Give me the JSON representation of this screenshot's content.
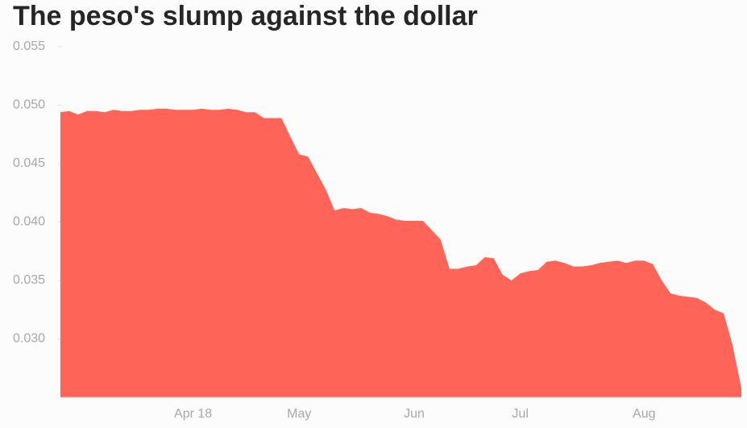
{
  "chart_data": {
    "type": "area",
    "title": "The peso's slump against the dollar",
    "categories": [
      null,
      null,
      null,
      null,
      null,
      null,
      null,
      null,
      null,
      null,
      null,
      null,
      null,
      null,
      null,
      "Apr 18",
      null,
      null,
      null,
      null,
      null,
      null,
      null,
      null,
      null,
      null,
      null,
      "May",
      null,
      null,
      null,
      null,
      null,
      null,
      null,
      null,
      null,
      null,
      null,
      null,
      "Jun",
      null,
      null,
      null,
      null,
      null,
      null,
      null,
      null,
      null,
      null,
      null,
      "Jul",
      null,
      null,
      null,
      null,
      null,
      null,
      null,
      null,
      null,
      null,
      null,
      null,
      null,
      "Aug",
      null,
      null,
      null,
      null,
      null,
      null,
      null,
      null,
      null,
      null,
      null
    ],
    "values": [
      0.0494,
      0.0495,
      0.0492,
      0.0495,
      0.0495,
      0.0494,
      0.0496,
      0.0495,
      0.0495,
      0.0496,
      0.0496,
      0.0497,
      0.0497,
      0.0496,
      0.0496,
      0.0496,
      0.0497,
      0.0496,
      0.0496,
      0.0497,
      0.0496,
      0.0494,
      0.0494,
      0.0489,
      0.0489,
      0.0489,
      0.0473,
      0.0458,
      0.0456,
      0.0442,
      0.0428,
      0.041,
      0.0412,
      0.0411,
      0.0412,
      0.0408,
      0.0407,
      0.0405,
      0.0402,
      0.0401,
      0.0401,
      0.0401,
      0.0393,
      0.0385,
      0.036,
      0.036,
      0.0362,
      0.0363,
      0.037,
      0.0369,
      0.0355,
      0.035,
      0.0356,
      0.0358,
      0.0359,
      0.0366,
      0.0367,
      0.0365,
      0.0362,
      0.0362,
      0.0363,
      0.0365,
      0.0366,
      0.0367,
      0.0365,
      0.0367,
      0.0367,
      0.0364,
      0.035,
      0.0339,
      0.0337,
      0.0336,
      0.0335,
      0.0331,
      0.0325,
      0.0322,
      0.0295,
      0.0258
    ],
    "color": "#ff6459",
    "ylim": [
      0.025,
      0.055
    ],
    "yticks": [
      {
        "value": 0.03,
        "label": "0.030"
      },
      0.035,
      {
        "value": 0.04,
        "label": "0.040"
      },
      0.045,
      {
        "value": 0.05,
        "label": "0.050"
      },
      0.055
    ],
    "grid": false
  }
}
